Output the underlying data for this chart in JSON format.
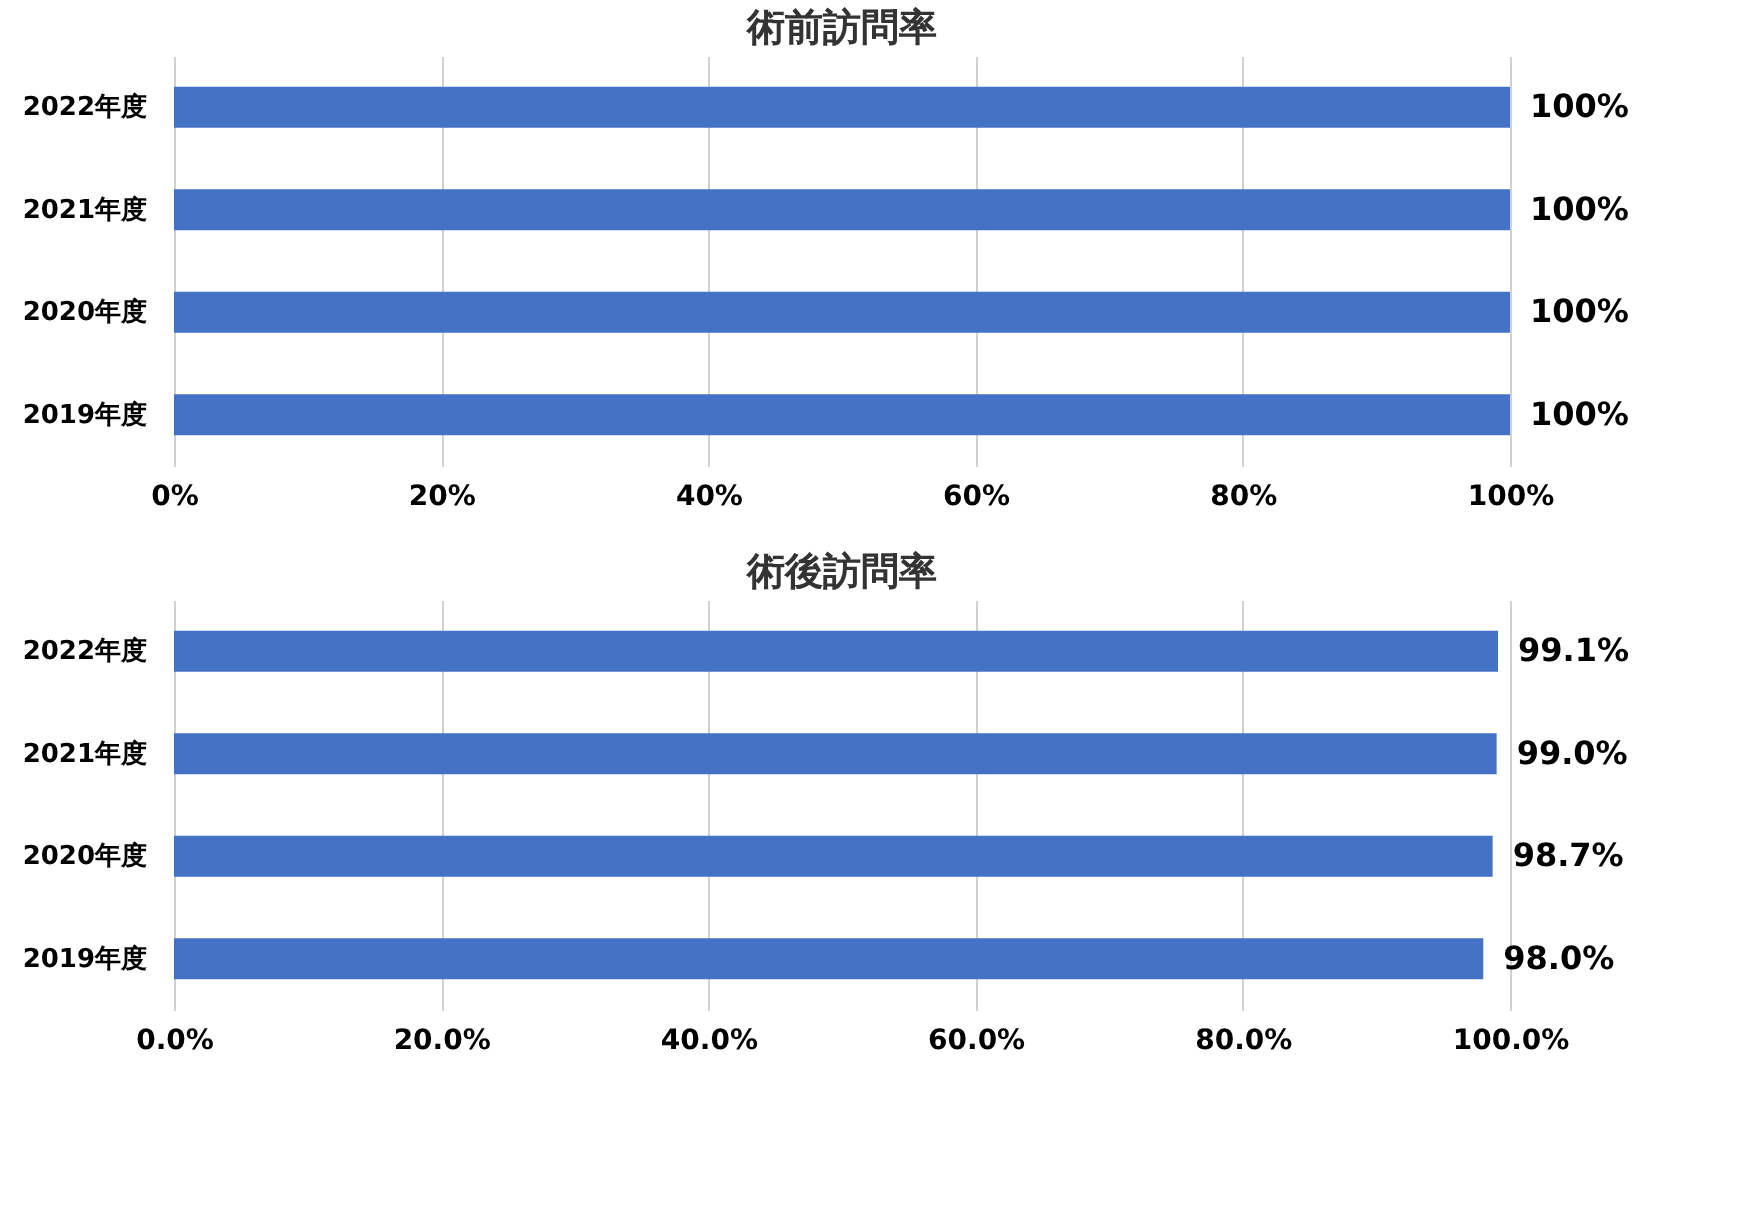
{
  "chart_data": [
    {
      "type": "bar",
      "orientation": "horizontal",
      "title": "術前訪問率",
      "categories": [
        "2022年度",
        "2021年度",
        "2020年度",
        "2019年度"
      ],
      "values": [
        100,
        100,
        100,
        100
      ],
      "value_labels": [
        "100%",
        "100%",
        "100%",
        "100%"
      ],
      "color": "#4472c4",
      "xlim": [
        0,
        100
      ],
      "xticks": [
        {
          "value": 0,
          "label": "0%"
        },
        {
          "value": 20,
          "label": "20%"
        },
        {
          "value": 40,
          "label": "40%"
        },
        {
          "value": 60,
          "label": "60%"
        },
        {
          "value": 80,
          "label": "80%"
        },
        {
          "value": 100,
          "label": "100%"
        }
      ],
      "grid": "x"
    },
    {
      "type": "bar",
      "orientation": "horizontal",
      "title": "術後訪問率",
      "categories": [
        "2022年度",
        "2021年度",
        "2020年度",
        "2019年度"
      ],
      "values": [
        99.1,
        99.0,
        98.7,
        98.0
      ],
      "value_labels": [
        "99.1%",
        "99.0%",
        "98.7%",
        "98.0%"
      ],
      "color": "#4472c4",
      "xlim": [
        0,
        100
      ],
      "xticks": [
        {
          "value": 0,
          "label": "0.0%"
        },
        {
          "value": 20,
          "label": "20.0%"
        },
        {
          "value": 40,
          "label": "40.0%"
        },
        {
          "value": 60,
          "label": "60.0%"
        },
        {
          "value": 80,
          "label": "80.0%"
        },
        {
          "value": 100,
          "label": "100.0%"
        }
      ],
      "grid": "x"
    }
  ]
}
